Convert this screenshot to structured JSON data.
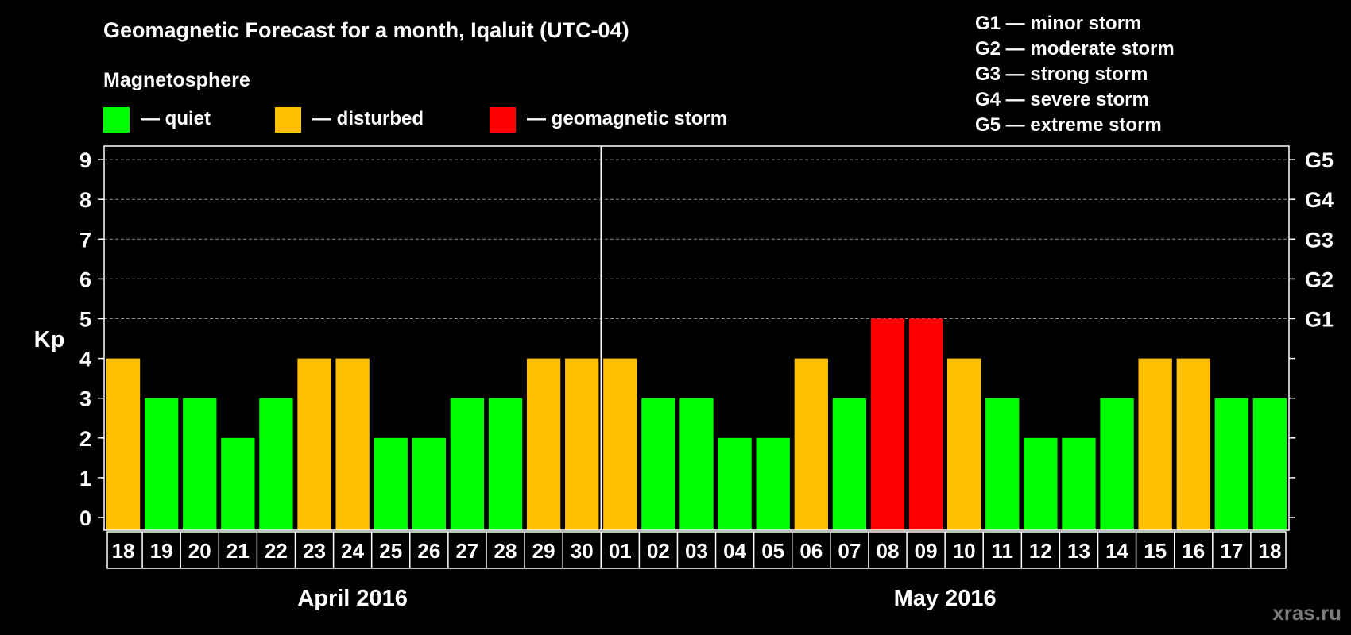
{
  "chart_data": {
    "type": "bar",
    "title": "Geomagnetic Forecast for a month, Iqaluit (UTC-04)",
    "legend_title": "Magnetosphere",
    "legend": [
      {
        "key": "quiet",
        "label": "— quiet",
        "color": "#00ff00"
      },
      {
        "key": "disturbed",
        "label": "— disturbed",
        "color": "#ffc000"
      },
      {
        "key": "storm",
        "label": "— geomagnetic storm",
        "color": "#ff0000"
      }
    ],
    "storm_scale": [
      "G1 — minor storm",
      "G2 — moderate storm",
      "G3 — strong storm",
      "G4 — severe storm",
      "G5 — extreme storm"
    ],
    "ylabel": "Kp",
    "ylim": [
      0,
      9
    ],
    "yticks": [
      "0",
      "1",
      "2",
      "3",
      "4",
      "5",
      "6",
      "7",
      "8",
      "9"
    ],
    "right_ticks": [
      {
        "kp": 5,
        "label": "G1"
      },
      {
        "kp": 6,
        "label": "G2"
      },
      {
        "kp": 7,
        "label": "G3"
      },
      {
        "kp": 8,
        "label": "G4"
      },
      {
        "kp": 9,
        "label": "G5"
      }
    ],
    "grid": "dashed horizontal at Kp 5-9",
    "categories": [
      "18",
      "19",
      "20",
      "21",
      "22",
      "23",
      "24",
      "25",
      "26",
      "27",
      "28",
      "29",
      "30",
      "01",
      "02",
      "03",
      "04",
      "05",
      "06",
      "07",
      "08",
      "09",
      "10",
      "11",
      "12",
      "13",
      "14",
      "15",
      "16",
      "17",
      "18"
    ],
    "values": [
      4,
      3,
      3,
      2,
      3,
      4,
      4,
      2,
      2,
      3,
      3,
      4,
      4,
      4,
      3,
      3,
      2,
      2,
      4,
      3,
      5,
      5,
      4,
      3,
      2,
      2,
      3,
      4,
      4,
      3,
      3
    ],
    "months": [
      {
        "label": "April 2016",
        "count": 13
      },
      {
        "label": "May 2016",
        "count": 18
      }
    ]
  },
  "watermark": "xras.ru"
}
